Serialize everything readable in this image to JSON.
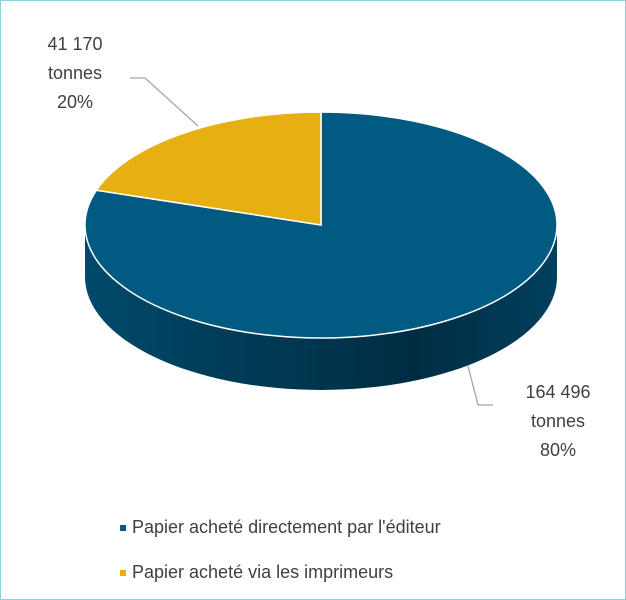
{
  "chart_data": {
    "type": "pie",
    "categories": [
      "Papier acheté directement par l'éditeur",
      "Papier acheté via les imprimeurs"
    ],
    "values": [
      164496,
      41170
    ],
    "value_labels": [
      "164 496",
      "41 170"
    ],
    "unit_label": "tonnes",
    "percentages": [
      80,
      20
    ],
    "percent_labels": [
      "80%",
      "20%"
    ],
    "colors": [
      "#005a82",
      "#e6b012"
    ],
    "side_colors": [
      "#003a55",
      "#9a7508"
    ],
    "legend": "bottom"
  }
}
